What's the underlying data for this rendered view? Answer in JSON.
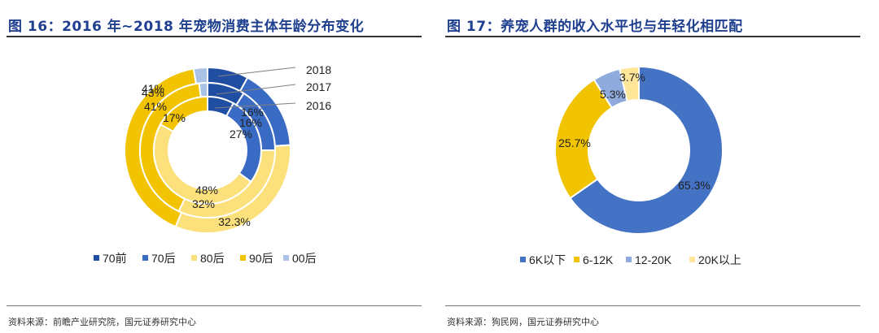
{
  "left": {
    "title": "图 16：2016 年~2018 年宠物消费主体年龄分布变化",
    "source": "资料来源：前瞻产业研究院，国元证券研究中心"
  },
  "right": {
    "title": "图 17：养宠人群的收入水平也与年轻化相匹配",
    "source": "资料来源：狗民网，国元证券研究中心"
  },
  "chart_data": [
    {
      "type": "pie",
      "variant": "multi-ring donut",
      "categories": [
        "70前",
        "70后",
        "80后",
        "90后",
        "00后"
      ],
      "colors": [
        "#1f4ea3",
        "#3a6bc4",
        "#fbe07b",
        "#f2c300",
        "#a9c2e6"
      ],
      "series": [
        {
          "name": "2018",
          "values": [
            8,
            16,
            32.3,
            41,
            2.7
          ],
          "labels": [
            "",
            "16%",
            "32.3%",
            "41%",
            ""
          ]
        },
        {
          "name": "2017",
          "values": [
            9,
            16,
            32,
            41,
            2
          ],
          "labels": [
            "",
            "16%",
            "32%",
            "41%",
            ""
          ]
        },
        {
          "name": "2016",
          "values": [
            8,
            27,
            48,
            17,
            0
          ],
          "labels": [
            "",
            "27%",
            "48%",
            "17%",
            ""
          ]
        }
      ],
      "extra_labels": [
        "43%"
      ],
      "legend_position": "bottom"
    },
    {
      "type": "pie",
      "variant": "donut",
      "categories": [
        "6K以下",
        "6-12K",
        "12-20K",
        "20K以上"
      ],
      "values": [
        65.3,
        25.7,
        5.3,
        3.7
      ],
      "labels": [
        "65.3%",
        "25.7%",
        "5.3%",
        "3.7%"
      ],
      "colors": [
        "#4472c4",
        "#f2c300",
        "#8faadc",
        "#ffe699"
      ],
      "legend_position": "bottom"
    }
  ]
}
